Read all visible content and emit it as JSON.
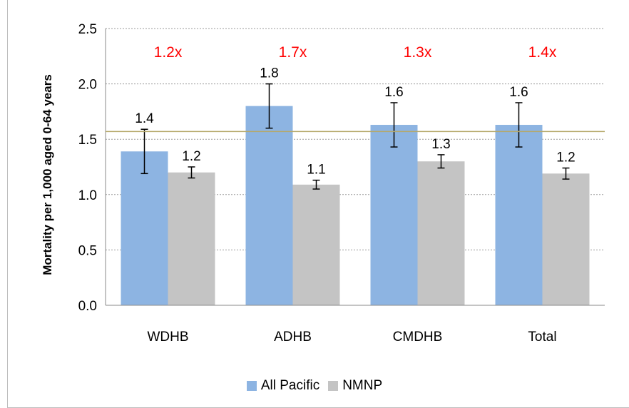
{
  "chart_data": {
    "type": "bar",
    "title": "",
    "xlabel": "",
    "ylabel": "Mortality per 1,000 aged 0-64 years",
    "ylim": [
      0,
      2.5
    ],
    "yticks": [
      "0.0",
      "0.5",
      "1.0",
      "1.5",
      "2.0",
      "2.5"
    ],
    "categories": [
      "WDHB",
      "ADHB",
      "CMDHB",
      "Total"
    ],
    "series": [
      {
        "name": "All Pacific",
        "color": "#8db4e2",
        "values": [
          1.39,
          1.8,
          1.63,
          1.63
        ],
        "error_low": [
          1.19,
          1.6,
          1.43,
          1.43
        ],
        "error_high": [
          1.59,
          2.0,
          1.83,
          1.83
        ],
        "labels": [
          "1.4",
          "1.8",
          "1.6",
          "1.6"
        ]
      },
      {
        "name": "NMNP",
        "color": "#c4c4c4",
        "values": [
          1.2,
          1.09,
          1.3,
          1.19
        ],
        "error_low": [
          1.15,
          1.05,
          1.24,
          1.14
        ],
        "error_high": [
          1.25,
          1.13,
          1.36,
          1.24
        ],
        "labels": [
          "1.2",
          "1.1",
          "1.3",
          "1.2"
        ]
      }
    ],
    "ratio_labels": [
      "1.2x",
      "1.7x",
      "1.3x",
      "1.4x"
    ],
    "ratio_color": "#ff0000",
    "reference_line": {
      "y": 1.57,
      "color": "#b5a86a"
    },
    "grid": true,
    "legend_position": "bottom"
  }
}
